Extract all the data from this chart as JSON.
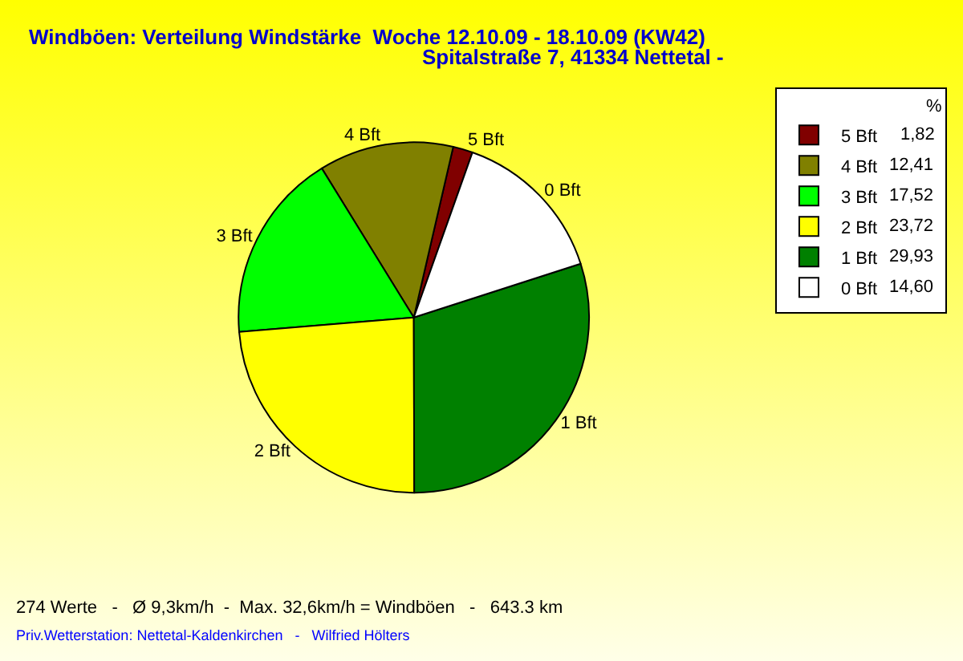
{
  "chart_data": {
    "type": "pie",
    "title": "Windböen: Verteilung Windstärke  Woche 12.10.09 - 18.10.09 (KW42)",
    "subtitle": "Spitalstraße 7, 41334 Nettetal -",
    "legend_title": "%",
    "categories": [
      "5 Bft",
      "4 Bft",
      "3 Bft",
      "2 Bft",
      "1 Bft",
      "0 Bft"
    ],
    "values": [
      1.82,
      12.41,
      17.52,
      23.72,
      29.93,
      14.6
    ],
    "value_labels": [
      "1,82",
      "12,41",
      "17,52",
      "23,72",
      "29,93",
      "14,60"
    ],
    "colors": [
      "#800000",
      "#808000",
      "#00ff00",
      "#ffff00",
      "#008000",
      "#ffffff"
    ],
    "legend": "top right",
    "annotations": [
      "274 Werte   -   Ø 9,3km/h  -  Max. 32,6km/h = Windböen   -   643.3 km",
      "Priv.Wetterstation: Nettetal-Kaldenkirchen   -   Wilfried Hölters"
    ]
  }
}
